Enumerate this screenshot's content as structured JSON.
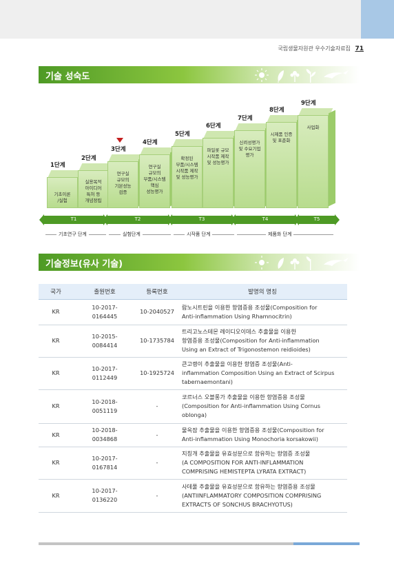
{
  "header": {
    "text": "국립생물자원관 우수기술자료집",
    "page_number": "71"
  },
  "section1": {
    "title": "기술 성숙도"
  },
  "section2": {
    "title": "기술정보(유사 기술)"
  },
  "stages": [
    {
      "label": "1단계",
      "text": [
        "기초이론",
        "/실험"
      ]
    },
    {
      "label": "2단계",
      "text": [
        "실용목적",
        "아이디어",
        "특허 등",
        "개념정립"
      ]
    },
    {
      "label": "3단계",
      "text": [
        "연구실",
        "규모의",
        "기본성능",
        "검증"
      ]
    },
    {
      "label": "4단계",
      "text": [
        "연구실",
        "규모의",
        "부품/시스템",
        "핵심",
        "성능평가"
      ]
    },
    {
      "label": "5단계",
      "text": [
        "확정된",
        "부품/시스템",
        "시작품 제작",
        "및 성능평가"
      ]
    },
    {
      "label": "6단계",
      "text": [
        "파일롯 규모",
        "시작품 제작",
        "및 성능평가"
      ]
    },
    {
      "label": "7단계",
      "text": [
        "신뢰성평가",
        "및 수요기업",
        "평가"
      ]
    },
    {
      "label": "8단계",
      "text": [
        "시제품 인증",
        "및 표준화"
      ]
    },
    {
      "label": "9단계",
      "text": [
        "사업화"
      ]
    }
  ],
  "current_stage_marker": "3단계",
  "t_phases": [
    "T1",
    "T2",
    "T3",
    "T4",
    "T5"
  ],
  "phases": [
    "기초연구 단계",
    "실험단계",
    "시작품 단계",
    "제품화 단계"
  ],
  "table": {
    "headers": [
      "국가",
      "출원번호",
      "등록번호",
      "발명의 명칭"
    ],
    "rows": [
      {
        "country": "KR",
        "app_no": [
          "10-2017-",
          "0164445"
        ],
        "reg_no": "10-2040527",
        "title": [
          "람노시트린을 이용한 항염증용 조성물(Composition for",
          "Anti-inflammation Using Rhamnocitrin)"
        ]
      },
      {
        "country": "KR",
        "app_no": [
          "10-2015-",
          "0084414"
        ],
        "reg_no": "10-1735784",
        "title": [
          "트리고노스테몬 레이디오이데스 추출물을 이용한",
          "항염증용 조성물(Composition for Anti-inflammation",
          "Using an Extract of Trigonostemon reidioides)"
        ]
      },
      {
        "country": "KR",
        "app_no": [
          "10-2017-",
          "0112449"
        ],
        "reg_no": "10-1925724",
        "title": [
          "큰고랭이 추출물을 이용한 항염증 조성물(Anti-",
          "inflammation Composition Using an Extract of Scirpus",
          "tabernaemontani)"
        ]
      },
      {
        "country": "KR",
        "app_no": [
          "10-2018-",
          "0051119"
        ],
        "reg_no": "-",
        "title": [
          "코르너스 오블롱가 추출물을 이용한 항염증용 조성물",
          "(Composition for Anti-inflammation Using Cornus",
          "oblonga)"
        ]
      },
      {
        "country": "KR",
        "app_no": [
          "10-2018-",
          "0034868"
        ],
        "reg_no": "-",
        "title": [
          "물옥잠 추출물을 이용한 항염증용 조성물(Composition for",
          "Anti-inflammation Using Monochoria korsakowii)"
        ]
      },
      {
        "country": "KR",
        "app_no": [
          "10-2017-",
          "0167814"
        ],
        "reg_no": "-",
        "title": [
          "지칭개 추출물을 유효성분으로 함유하는 항염증 조성물",
          "(A COMPOSITION FOR ANTI-INFLAMMATION",
          "COMPRISING HEMISTEPTA LYRATA EXTRACT)"
        ]
      },
      {
        "country": "KR",
        "app_no": [
          "10-2017-",
          "0136220"
        ],
        "reg_no": "-",
        "title": [
          "사데풀 추출물을 유효성분으로 함유하는 항염증용 조성물",
          "(ANTIINFLAMMATORY COMPOSITION COMPRISING",
          "EXTRACTS OF SONCHUS BRACHYOTUS)"
        ]
      }
    ]
  },
  "colors": {
    "accent_green": "#4e9a25",
    "light_green": "#8cc63f",
    "header_blue": "#e4eef9",
    "marker_red": "#c41f1f"
  },
  "icons": [
    "sun-icon",
    "leaf-icon",
    "flower-icon",
    "bird-icon",
    "plant-icon"
  ]
}
